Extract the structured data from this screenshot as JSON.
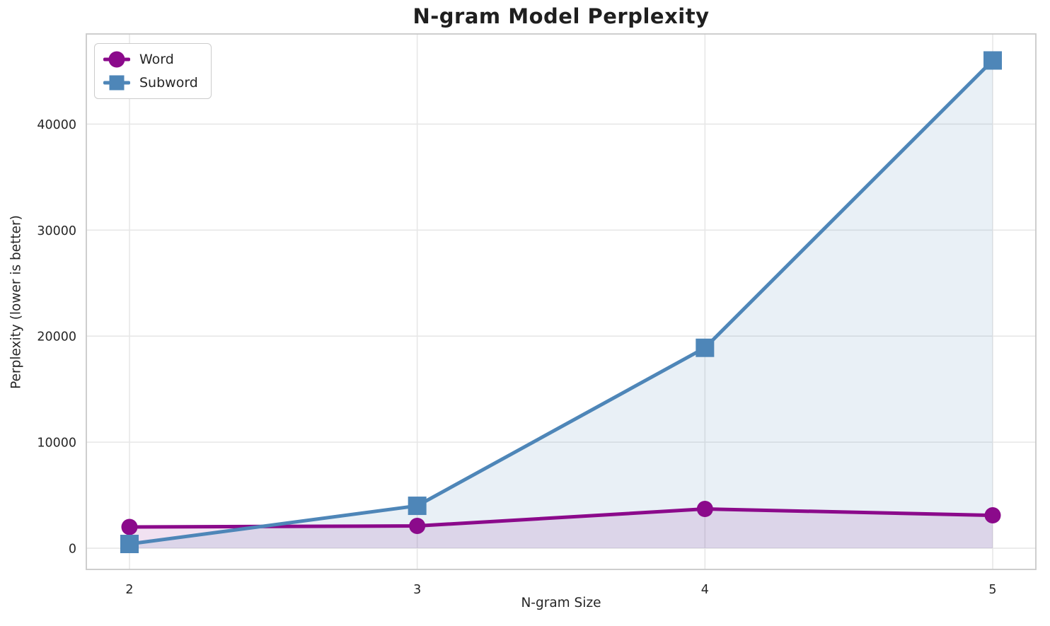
{
  "chart_data": {
    "type": "line",
    "title": "N-gram Model Perplexity",
    "xlabel": "N-gram Size",
    "ylabel": "Perplexity (lower is better)",
    "x": [
      2,
      3,
      4,
      5
    ],
    "series": [
      {
        "name": "Word",
        "marker": "circle",
        "color": "#8B0A8B",
        "values": [
          2000,
          2100,
          3700,
          3100
        ]
      },
      {
        "name": "Subword",
        "marker": "square",
        "color": "#4E86B8",
        "values": [
          400,
          4000,
          18900,
          46000
        ]
      }
    ],
    "xticks": [
      2,
      3,
      4,
      5
    ],
    "xtick_labels": [
      "2",
      "3",
      "4",
      "5"
    ],
    "yticks": [
      0,
      10000,
      20000,
      30000,
      40000
    ],
    "ytick_labels": [
      "0",
      "10000",
      "20000",
      "30000",
      "40000"
    ],
    "xlim": [
      1.85,
      5.15
    ],
    "ylim": [
      -2000,
      48500
    ],
    "fill_baseline": 0,
    "fill_alpha": 0.12,
    "grid": true,
    "legend_position": "upper-left",
    "grid_color": "#E7E7E7",
    "spine_color": "#C9C9C9",
    "text_color": "#262626",
    "tick_font_size": 17.5,
    "line_width": 5
  }
}
